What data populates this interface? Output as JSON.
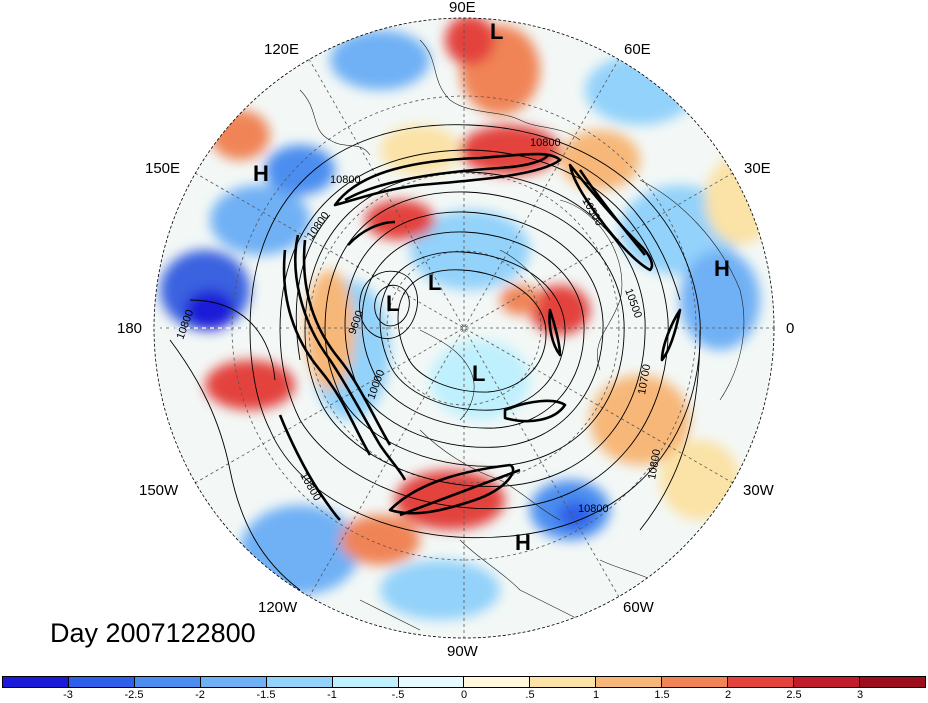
{
  "title": "Day 2007122800",
  "longitude_labels": [
    {
      "text": "90E",
      "name": "lon-label-90e"
    },
    {
      "text": "120E",
      "name": "lon-label-120e"
    },
    {
      "text": "60E",
      "name": "lon-label-60e"
    },
    {
      "text": "150E",
      "name": "lon-label-150e"
    },
    {
      "text": "30E",
      "name": "lon-label-30e"
    },
    {
      "text": "180",
      "name": "lon-label-180"
    },
    {
      "text": "0",
      "name": "lon-label-0"
    },
    {
      "text": "150W",
      "name": "lon-label-150w"
    },
    {
      "text": "30W",
      "name": "lon-label-30w"
    },
    {
      "text": "120W",
      "name": "lon-label-120w"
    },
    {
      "text": "60W",
      "name": "lon-label-60w"
    },
    {
      "text": "90W",
      "name": "lon-label-90w"
    }
  ],
  "pressure_systems": [
    "L",
    "H",
    "H",
    "L",
    "L",
    "L",
    "H"
  ],
  "contour_labels": [
    "10800",
    "10800",
    "10500",
    "10800",
    "10500",
    "9600",
    "10800",
    "10000",
    "10800",
    "10700",
    "10800",
    "10800"
  ],
  "colorbar": {
    "ticks": [
      "-3",
      "-2.5",
      "-2",
      "-1.5",
      "-1",
      "-.5",
      "0",
      ".5",
      "1",
      "1.5",
      "2",
      "2.5",
      "3"
    ],
    "colors": [
      "#1a1ad8",
      "#2d5fe8",
      "#4b8ef0",
      "#6fb0f5",
      "#93d2fa",
      "#bff0fd",
      "#e6fbff",
      "#fff8dc",
      "#fbe2a6",
      "#f7b778",
      "#f08457",
      "#e3423d",
      "#c11c2b",
      "#9c0e1d"
    ]
  }
}
